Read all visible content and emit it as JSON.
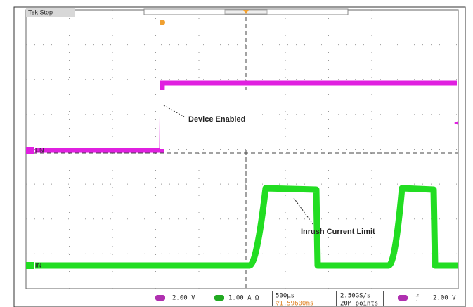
{
  "header": {
    "status": "Tek Stop"
  },
  "annotations": [
    {
      "text": "Device Enabled"
    },
    {
      "text": "Inrush Current Limit"
    }
  ],
  "channels": [
    {
      "label": "EN"
    },
    {
      "label": "IN"
    }
  ],
  "status_bar": {
    "ch1_scale": "2.00 V",
    "ch2_scale": "1.00 A Ω",
    "timebase": "500µs",
    "delay": "▽1.59600ms",
    "sample_rate": "2.50GS/s",
    "record_length": "20M points",
    "trigger_level": "2.00 V"
  }
}
